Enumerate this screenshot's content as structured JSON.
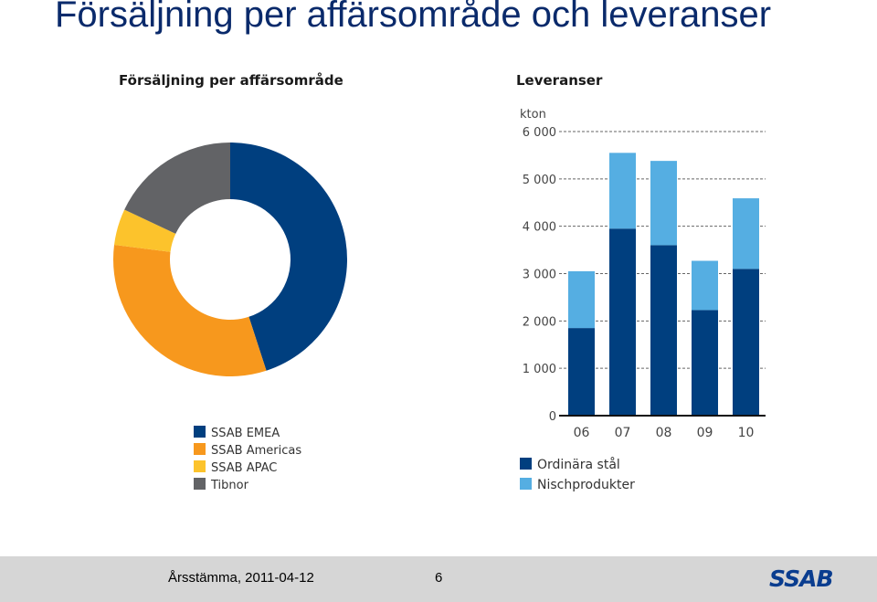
{
  "slide": {
    "title": "Försäljning per affärsområde och leveranser"
  },
  "footer": {
    "text": "Årsstämma, 2011-04-12",
    "page_number": "6",
    "logo": "SSAB"
  },
  "colors": {
    "title": "#0a2a6b",
    "ssab_emea": "#003f7f",
    "ssab_americas": "#f7981d",
    "ssab_apac": "#fcc32c",
    "tibnor": "#626366",
    "ordinara_stal": "#003f7f",
    "nischprodukter": "#55aee2",
    "footer_bg": "#d6d6d6"
  },
  "chart_data": [
    {
      "type": "pie",
      "donut": true,
      "title": "Försäljning per affärsområde",
      "series": [
        {
          "name": "SSAB EMEA",
          "value": 45,
          "color": "#003f7f"
        },
        {
          "name": "SSAB Americas",
          "value": 32,
          "color": "#f7981d"
        },
        {
          "name": "SSAB APAC",
          "value": 5,
          "color": "#fcc32c"
        },
        {
          "name": "Tibnor",
          "value": 18,
          "color": "#626366"
        }
      ],
      "legend_position": "bottom"
    },
    {
      "type": "bar",
      "stacked": true,
      "title": "Leveranser",
      "ylabel": "kton",
      "ylim": [
        0,
        6000
      ],
      "yticks": [
        0,
        1000,
        2000,
        3000,
        4000,
        5000,
        6000
      ],
      "ytick_labels": [
        "0",
        "1 000",
        "2 000",
        "3 000",
        "4 000",
        "5 000",
        "6 000"
      ],
      "categories": [
        "06",
        "07",
        "08",
        "09",
        "10"
      ],
      "series": [
        {
          "name": "Ordinära stål",
          "values": [
            1850,
            3950,
            3600,
            2230,
            3100
          ],
          "color": "#003f7f"
        },
        {
          "name": "Nischprodukter",
          "values": [
            1200,
            1600,
            1780,
            1040,
            1490
          ],
          "color": "#55aee2"
        }
      ],
      "grid": "dashed horizontal",
      "legend_position": "bottom"
    }
  ]
}
